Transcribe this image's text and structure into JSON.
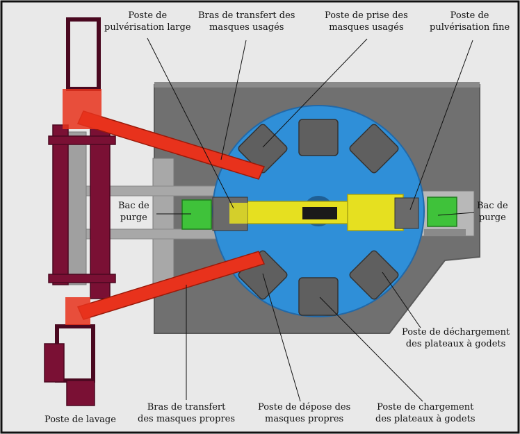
{
  "labels": {
    "spray_wide": [
      "Poste de",
      "pulvérisation large"
    ],
    "arm_used": [
      "Bras de transfert des",
      "masques usagés"
    ],
    "pick_used": [
      "Poste de prise des",
      "masques usagés"
    ],
    "spray_fine": [
      "Poste de",
      "pulvérisation fine"
    ],
    "purge_left": [
      "Bac de",
      "purge"
    ],
    "purge_right": [
      "Bac de",
      "purge"
    ],
    "unload_trays": [
      "Poste de déchargement",
      "des plateaux à godets"
    ],
    "load_trays": [
      "Poste de chargement",
      "des plateaux à godets"
    ],
    "drop_clean": [
      "Poste de dépose des",
      "masques propres"
    ],
    "arm_clean": [
      "Bras de transfert",
      "des masques propres"
    ],
    "wash": [
      "Poste de lavage"
    ]
  },
  "colors": {
    "background": "#e9e9e9",
    "platform": "#707070",
    "turntable": "#2f8fd8",
    "turntable_dark": "#2a78b8",
    "arm_red": "#e8321c",
    "rack_maroon": "#7a1034",
    "rail_yellow": "#e6e020",
    "purge_green": "#3fc23a",
    "frame_grey": "#a8a8a8"
  }
}
